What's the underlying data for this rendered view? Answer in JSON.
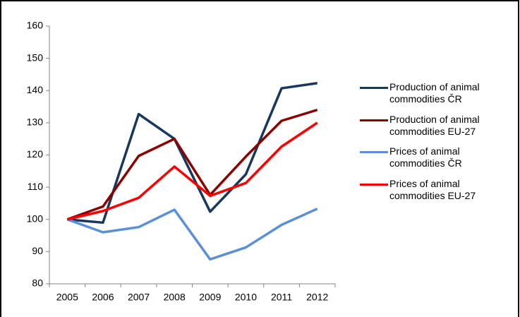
{
  "chart_data": {
    "type": "line",
    "categories": [
      "2005",
      "2006",
      "2007",
      "2008",
      "2009",
      "2010",
      "2011",
      "2012"
    ],
    "series": [
      {
        "name": "Production of animal commodities ČR",
        "color": "#17375e",
        "values": [
          100,
          99,
          132.7,
          125,
          102.4,
          114,
          140.7,
          142.3
        ]
      },
      {
        "name": "Production of animal commodities EU-27",
        "color": "#8b0000",
        "values": [
          100,
          104,
          119.7,
          125,
          107.6,
          119.5,
          130.6,
          134
        ]
      },
      {
        "name": "Prices of animal commodities ČR",
        "color": "#5b8fd6",
        "values": [
          100,
          96,
          97.6,
          103,
          87.6,
          91.3,
          98.3,
          103.3
        ]
      },
      {
        "name": "Prices of animal commodities EU-27",
        "color": "#ff0000",
        "values": [
          100,
          102.6,
          106.7,
          116.4,
          107.3,
          111.3,
          122.6,
          130
        ]
      }
    ],
    "ylim": [
      80,
      160
    ],
    "yticks": [
      80,
      90,
      100,
      110,
      120,
      130,
      140,
      150,
      160
    ],
    "grid": false,
    "legend": "right"
  }
}
